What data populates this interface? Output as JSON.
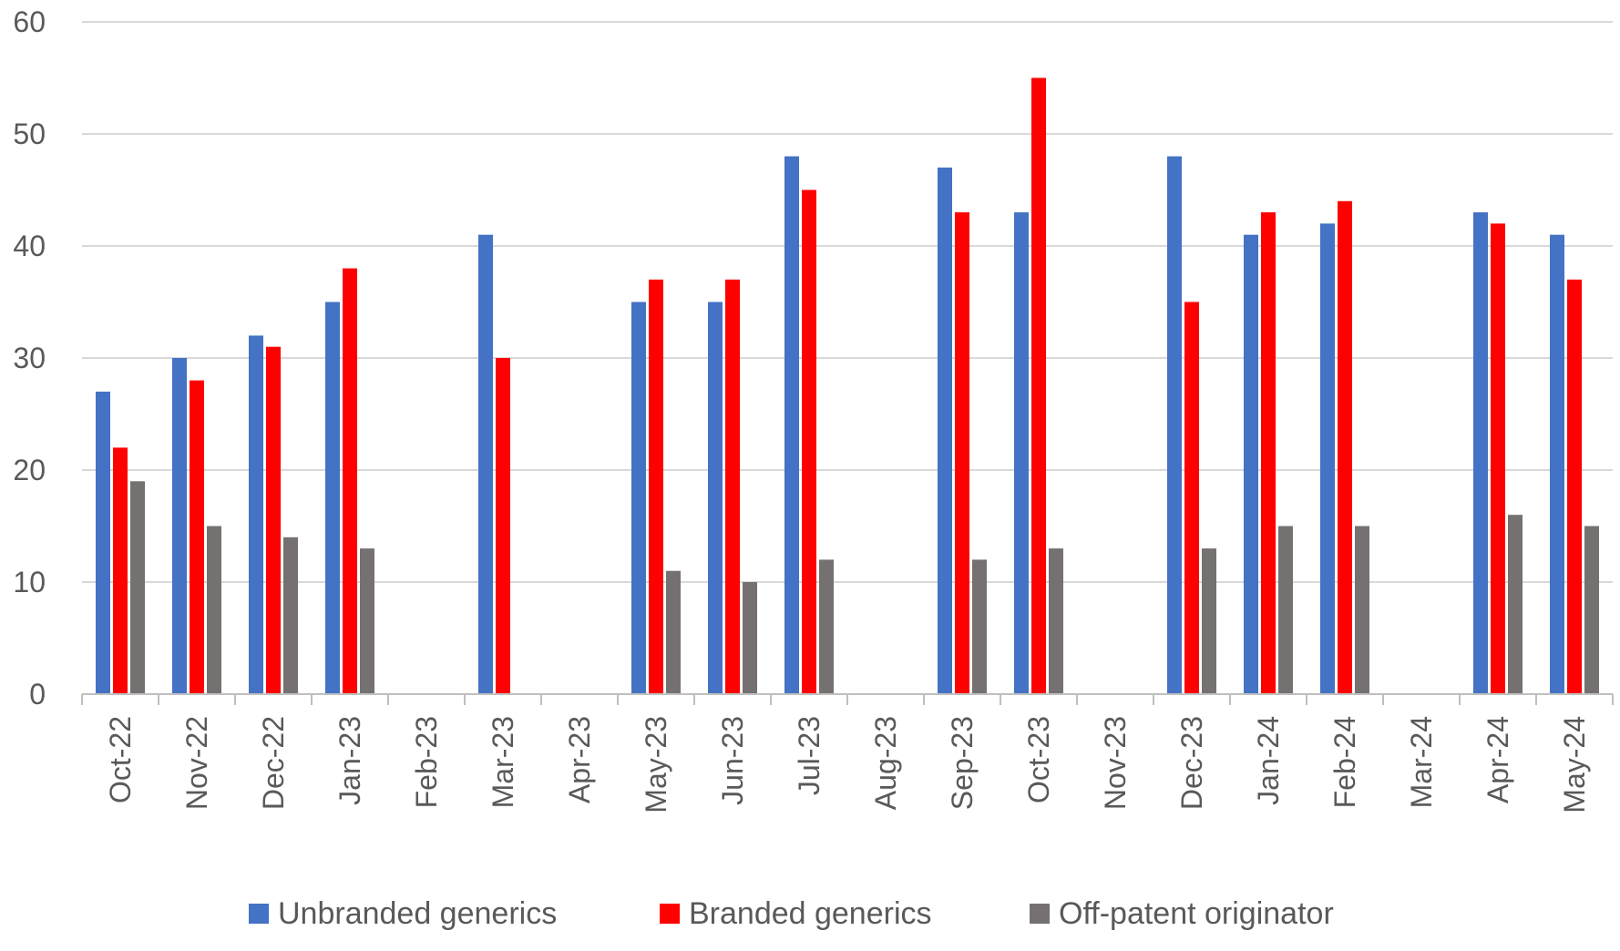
{
  "chart_data": {
    "type": "bar",
    "categories": [
      "Oct-22",
      "Nov-22",
      "Dec-22",
      "Jan-23",
      "Feb-23",
      "Mar-23",
      "Apr-23",
      "May-23",
      "Jun-23",
      "Jul-23",
      "Aug-23",
      "Sep-23",
      "Oct-23",
      "Nov-23",
      "Dec-23",
      "Jan-24",
      "Feb-24",
      "Mar-24",
      "Apr-24",
      "May-24"
    ],
    "series": [
      {
        "name": "Unbranded generics",
        "color": "#4472c4",
        "values": [
          27,
          30,
          32,
          35,
          null,
          41,
          null,
          35,
          35,
          48,
          null,
          47,
          43,
          null,
          48,
          41,
          42,
          null,
          43,
          41
        ]
      },
      {
        "name": "Branded generics",
        "color": "#ff0000",
        "values": [
          22,
          28,
          31,
          38,
          null,
          30,
          null,
          37,
          37,
          45,
          null,
          43,
          55,
          null,
          35,
          43,
          44,
          null,
          42,
          37
        ]
      },
      {
        "name": "Off-patent originator",
        "color": "#767171",
        "values": [
          19,
          15,
          14,
          13,
          null,
          null,
          null,
          11,
          10,
          12,
          null,
          12,
          13,
          null,
          13,
          15,
          15,
          null,
          16,
          15
        ]
      }
    ],
    "ylim": [
      0,
      60
    ],
    "yticks": [
      0,
      10,
      20,
      30,
      40,
      50,
      60
    ],
    "grid": true,
    "legend": "bottom"
  }
}
